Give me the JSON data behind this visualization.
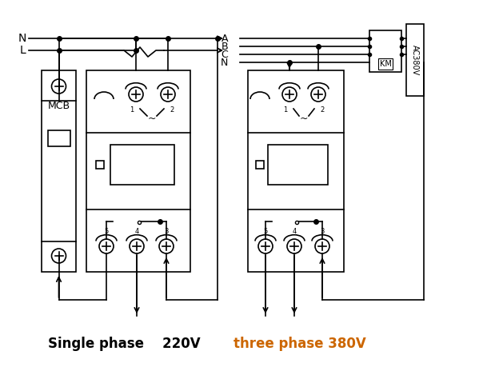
{
  "bg_color": "#ffffff",
  "line_color": "#000000",
  "orange_text": "#cc6600",
  "title1": "Single phase    220V",
  "title2": "three phase 380V",
  "km_label": "KM",
  "ac_label": "AC380V"
}
